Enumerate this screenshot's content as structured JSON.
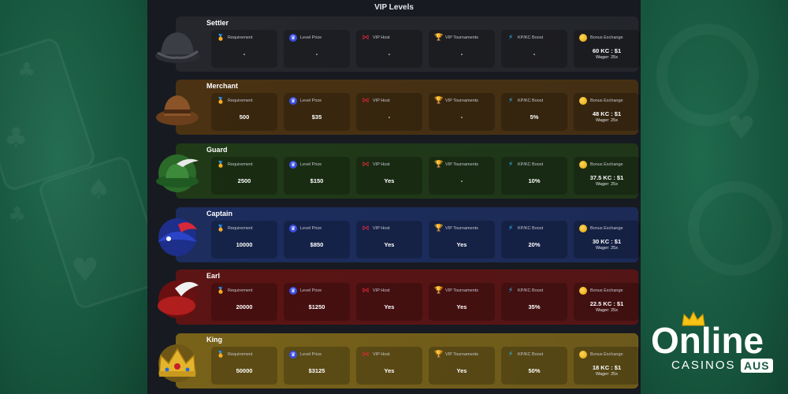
{
  "page": {
    "title": "VIP Levels"
  },
  "labels": {
    "requirement": "Requirement",
    "level_prize": "Level Prize",
    "vip_host": "VIP Host",
    "vip_tournaments": "VIP Tournaments",
    "kp_kc_boost": "KP/KC Boost",
    "bonus_exchange": "Bonus Exchange"
  },
  "levels": [
    {
      "name": "Settler",
      "requirement": "-",
      "level_prize": "-",
      "vip_host": "-",
      "vip_tournaments": "-",
      "kp_kc_boost": "-",
      "bonus_exchange": "60 KC : $1",
      "wager": "Wager: 25x",
      "hat_icon": "black-tricorn-hat-icon"
    },
    {
      "name": "Merchant",
      "requirement": "500",
      "level_prize": "$35",
      "vip_host": "-",
      "vip_tournaments": "-",
      "kp_kc_boost": "5%",
      "bonus_exchange": "48 KC : $1",
      "wager": "Wager: 25x",
      "hat_icon": "brown-hat-icon"
    },
    {
      "name": "Guard",
      "requirement": "2500",
      "level_prize": "$150",
      "vip_host": "Yes",
      "vip_tournaments": "-",
      "kp_kc_boost": "10%",
      "bonus_exchange": "37.5 KC : $1",
      "wager": "Wager: 25x",
      "hat_icon": "green-feather-hat-icon"
    },
    {
      "name": "Captain",
      "requirement": "10000",
      "level_prize": "$850",
      "vip_host": "Yes",
      "vip_tournaments": "Yes",
      "kp_kc_boost": "20%",
      "bonus_exchange": "30 KC : $1",
      "wager": "Wager: 25x",
      "hat_icon": "blue-bicorne-hat-icon"
    },
    {
      "name": "Earl",
      "requirement": "20000",
      "level_prize": "$1250",
      "vip_host": "Yes",
      "vip_tournaments": "Yes",
      "kp_kc_boost": "35%",
      "bonus_exchange": "22.5 KC : $1",
      "wager": "Wager: 25x",
      "hat_icon": "red-feather-hat-icon"
    },
    {
      "name": "King",
      "requirement": "50000",
      "level_prize": "$3125",
      "vip_host": "Yes",
      "vip_tournaments": "Yes",
      "kp_kc_boost": "50%",
      "bonus_exchange": "18 KC : $1",
      "wager": "Wager: 25x",
      "hat_icon": "gold-crown-icon"
    }
  ],
  "logo": {
    "main": "Online",
    "sub": "CASINOS",
    "badge": "AUS"
  },
  "colors": {
    "Settler": "#25272c",
    "Merchant": "#4a3212",
    "Guard": "#203a18",
    "Captain": "#1c2d5e",
    "Earl": "#5c1414",
    "King": "#78621a",
    "background_green": "#1b5a43",
    "panel": "#171a20"
  }
}
